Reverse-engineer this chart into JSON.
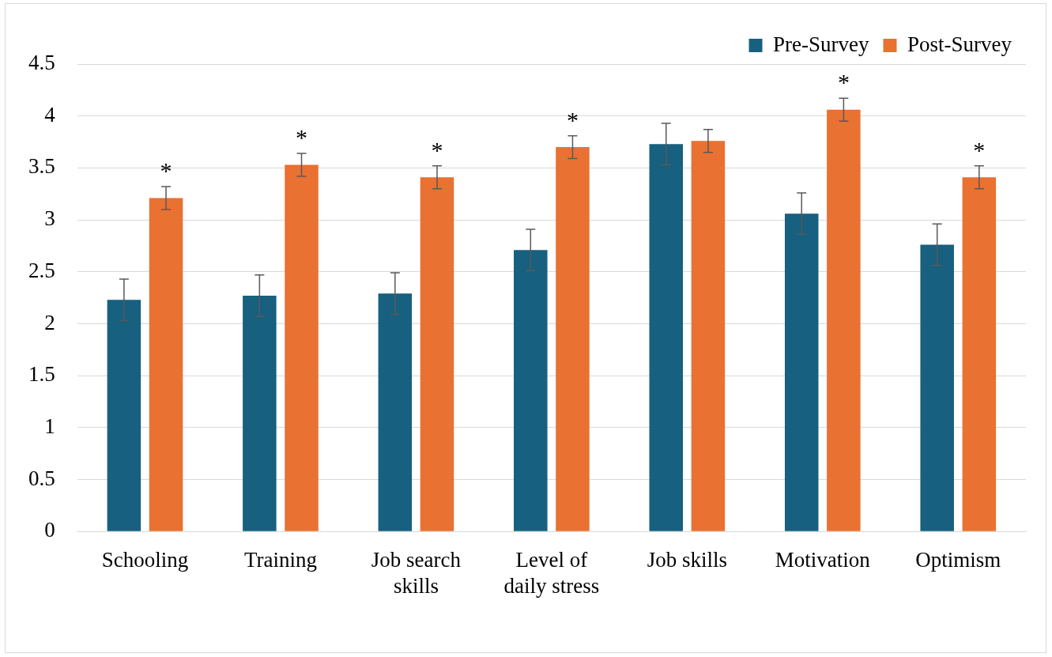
{
  "chart_data": {
    "type": "bar",
    "categories": [
      "Schooling",
      "Training",
      "Job search skills",
      "Level of daily stress",
      "Job skills",
      "Motivation",
      "Optimism"
    ],
    "series": [
      {
        "name": "Pre-Survey",
        "color": "#17607f",
        "values": [
          2.23,
          2.27,
          2.29,
          2.71,
          3.73,
          3.06,
          2.76
        ],
        "errors": [
          0.2,
          0.2,
          0.2,
          0.2,
          0.2,
          0.2,
          0.2
        ]
      },
      {
        "name": "Post-Survey",
        "color": "#e97132",
        "values": [
          3.21,
          3.53,
          3.41,
          3.7,
          3.76,
          4.06,
          3.41
        ],
        "errors": [
          0.11,
          0.11,
          0.11,
          0.11,
          0.11,
          0.11,
          0.11
        ],
        "value_labels": [
          "*",
          "*",
          "*",
          "*",
          null,
          "*",
          "*"
        ]
      }
    ],
    "ylim": [
      0,
      4.5
    ],
    "yticks": [
      0,
      0.5,
      1,
      1.5,
      2,
      2.5,
      3,
      3.5,
      4,
      4.5
    ],
    "grid": "y",
    "legend": "top right"
  }
}
